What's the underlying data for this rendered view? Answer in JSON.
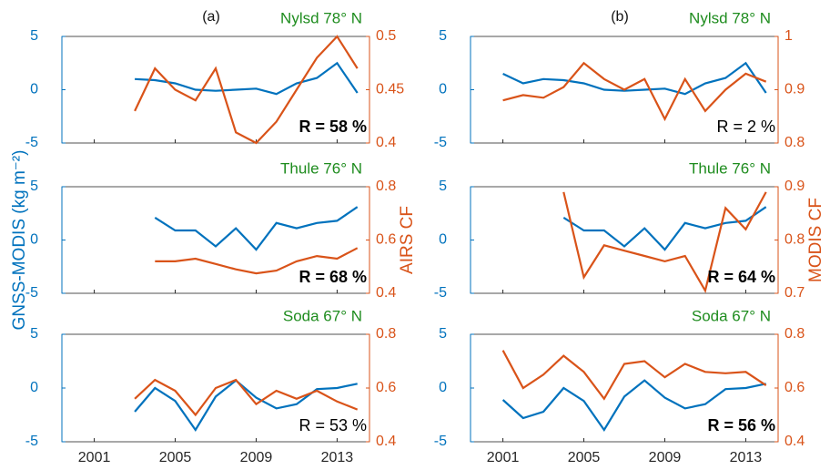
{
  "chart_data": [
    {
      "type": "line",
      "panel_label": "(a)",
      "title": "Nylsd 78° N",
      "annotation": "R = 58 %",
      "annotation_bold": true,
      "xlim": [
        1999.4,
        2014.6
      ],
      "xticks": [
        2001,
        2005,
        2009,
        2013
      ],
      "xtick_labels": false,
      "ylim": [
        -5,
        5
      ],
      "yticks": [
        -5,
        0,
        5
      ],
      "y2lim": [
        0.4,
        0.5
      ],
      "y2ticks": [
        0.4,
        0.45,
        0.5
      ],
      "series": [
        {
          "color": "#0072bd",
          "x": [
            2003,
            2004,
            2005,
            2006,
            2007,
            2008,
            2009,
            2010,
            2011,
            2012,
            2013,
            2014
          ],
          "values": [
            1.0,
            0.9,
            0.6,
            0.0,
            -0.1,
            0.0,
            0.1,
            -0.4,
            0.6,
            1.1,
            2.5,
            -0.3
          ]
        },
        {
          "color": "#d95319",
          "axis": "y2",
          "x": [
            2003,
            2004,
            2005,
            2006,
            2007,
            2008,
            2009,
            2010,
            2011,
            2012,
            2013,
            2014
          ],
          "values": [
            0.43,
            0.47,
            0.45,
            0.44,
            0.47,
            0.41,
            0.4,
            0.42,
            0.45,
            0.48,
            0.5,
            0.47
          ]
        }
      ]
    },
    {
      "type": "line",
      "panel_label": "(b)",
      "title": "Nylsd 78° N",
      "annotation": "R = 2 %",
      "annotation_bold": false,
      "xlim": [
        1999.4,
        2014.6
      ],
      "xticks": [
        2001,
        2005,
        2009,
        2013
      ],
      "xtick_labels": false,
      "ylim": [
        -5,
        5
      ],
      "yticks": [
        -5,
        0,
        5
      ],
      "y2lim": [
        0.8,
        1
      ],
      "y2ticks": [
        0.8,
        0.9,
        1
      ],
      "series": [
        {
          "color": "#0072bd",
          "x": [
            2001,
            2002,
            2003,
            2004,
            2005,
            2006,
            2007,
            2008,
            2009,
            2010,
            2011,
            2012,
            2013,
            2014
          ],
          "values": [
            1.5,
            0.6,
            1.0,
            0.9,
            0.6,
            0.0,
            -0.1,
            0.0,
            0.1,
            -0.4,
            0.6,
            1.1,
            2.5,
            -0.3
          ]
        },
        {
          "color": "#d95319",
          "axis": "y2",
          "x": [
            2001,
            2002,
            2003,
            2004,
            2005,
            2006,
            2007,
            2008,
            2009,
            2010,
            2011,
            2012,
            2013,
            2014
          ],
          "values": [
            0.88,
            0.89,
            0.885,
            0.905,
            0.95,
            0.92,
            0.9,
            0.92,
            0.845,
            0.92,
            0.86,
            0.9,
            0.93,
            0.915
          ]
        }
      ]
    },
    {
      "type": "line",
      "title": "Thule 76° N",
      "annotation": "R = 68 %",
      "annotation_bold": true,
      "ylabel": "GNSS-MODIS (kg m⁻²)",
      "y2label": "AIRS CF",
      "xlim": [
        1999.4,
        2014.6
      ],
      "xticks": [
        2001,
        2005,
        2009,
        2013
      ],
      "xtick_labels": false,
      "ylim": [
        -5,
        5
      ],
      "yticks": [
        -5,
        0,
        5
      ],
      "y2lim": [
        0.4,
        0.8
      ],
      "y2ticks": [
        0.4,
        0.6,
        0.8
      ],
      "series": [
        {
          "color": "#0072bd",
          "x": [
            2004,
            2005,
            2006,
            2007,
            2008,
            2009,
            2010,
            2011,
            2012,
            2013,
            2014
          ],
          "values": [
            2.1,
            0.9,
            0.9,
            -0.6,
            1.1,
            -0.9,
            1.6,
            1.1,
            1.6,
            1.8,
            3.1
          ]
        },
        {
          "color": "#d95319",
          "axis": "y2",
          "x": [
            2004,
            2005,
            2006,
            2007,
            2008,
            2009,
            2010,
            2011,
            2012,
            2013,
            2014
          ],
          "values": [
            0.52,
            0.52,
            0.53,
            0.51,
            0.49,
            0.475,
            0.485,
            0.52,
            0.54,
            0.53,
            0.57
          ]
        }
      ]
    },
    {
      "type": "line",
      "title": "Thule 76° N",
      "annotation": "R = 64 %",
      "annotation_bold": true,
      "y2label": "MODIS CF",
      "xlim": [
        1999.4,
        2014.6
      ],
      "xticks": [
        2001,
        2005,
        2009,
        2013
      ],
      "xtick_labels": false,
      "ylim": [
        -5,
        5
      ],
      "yticks": [
        -5,
        0,
        5
      ],
      "y2lim": [
        0.7,
        0.9
      ],
      "y2ticks": [
        0.7,
        0.8,
        0.9
      ],
      "series": [
        {
          "color": "#0072bd",
          "x": [
            2004,
            2005,
            2006,
            2007,
            2008,
            2009,
            2010,
            2011,
            2012,
            2013,
            2014
          ],
          "values": [
            2.1,
            0.9,
            0.9,
            -0.6,
            1.1,
            -0.9,
            1.6,
            1.1,
            1.6,
            1.8,
            3.1
          ]
        },
        {
          "color": "#d95319",
          "axis": "y2",
          "x": [
            2004,
            2005,
            2006,
            2007,
            2008,
            2009,
            2010,
            2011,
            2012,
            2013,
            2014
          ],
          "values": [
            0.89,
            0.73,
            0.79,
            0.78,
            0.77,
            0.76,
            0.77,
            0.705,
            0.86,
            0.82,
            0.89
          ]
        }
      ]
    },
    {
      "type": "line",
      "title": "Soda 67° N",
      "annotation": "R = 53 %",
      "annotation_bold": false,
      "xlim": [
        1999.4,
        2014.6
      ],
      "xticks": [
        2001,
        2005,
        2009,
        2013
      ],
      "xtick_labels": true,
      "ylim": [
        -5,
        5
      ],
      "yticks": [
        -5,
        0,
        5
      ],
      "y2lim": [
        0.4,
        0.8
      ],
      "y2ticks": [
        0.4,
        0.6,
        0.8
      ],
      "series": [
        {
          "color": "#0072bd",
          "x": [
            2003,
            2004,
            2005,
            2006,
            2007,
            2008,
            2009,
            2010,
            2011,
            2012,
            2013,
            2014
          ],
          "values": [
            -2.2,
            0.0,
            -1.2,
            -3.9,
            -0.8,
            0.7,
            -0.9,
            -1.9,
            -1.5,
            -0.1,
            0.0,
            0.4
          ]
        },
        {
          "color": "#d95319",
          "axis": "y2",
          "x": [
            2003,
            2004,
            2005,
            2006,
            2007,
            2008,
            2009,
            2010,
            2011,
            2012,
            2013,
            2014
          ],
          "values": [
            0.56,
            0.63,
            0.59,
            0.5,
            0.6,
            0.63,
            0.54,
            0.59,
            0.56,
            0.59,
            0.55,
            0.52
          ]
        }
      ]
    },
    {
      "type": "line",
      "title": "Soda 67° N",
      "annotation": "R = 56 %",
      "annotation_bold": true,
      "xlim": [
        1999.4,
        2014.6
      ],
      "xticks": [
        2001,
        2005,
        2009,
        2013
      ],
      "xtick_labels": true,
      "ylim": [
        -5,
        5
      ],
      "yticks": [
        -5,
        0,
        5
      ],
      "y2lim": [
        0.4,
        0.8
      ],
      "y2ticks": [
        0.4,
        0.6,
        0.8
      ],
      "series": [
        {
          "color": "#0072bd",
          "x": [
            2001,
            2002,
            2003,
            2004,
            2005,
            2006,
            2007,
            2008,
            2009,
            2010,
            2011,
            2012,
            2013,
            2014
          ],
          "values": [
            -1.1,
            -2.8,
            -2.2,
            0.0,
            -1.2,
            -3.9,
            -0.8,
            0.7,
            -0.9,
            -1.9,
            -1.5,
            -0.1,
            0.0,
            0.4
          ]
        },
        {
          "color": "#d95319",
          "axis": "y2",
          "x": [
            2001,
            2002,
            2003,
            2004,
            2005,
            2006,
            2007,
            2008,
            2009,
            2010,
            2011,
            2012,
            2013,
            2014
          ],
          "values": [
            0.74,
            0.6,
            0.65,
            0.72,
            0.66,
            0.56,
            0.69,
            0.7,
            0.64,
            0.69,
            0.66,
            0.655,
            0.66,
            0.61
          ]
        }
      ]
    }
  ]
}
